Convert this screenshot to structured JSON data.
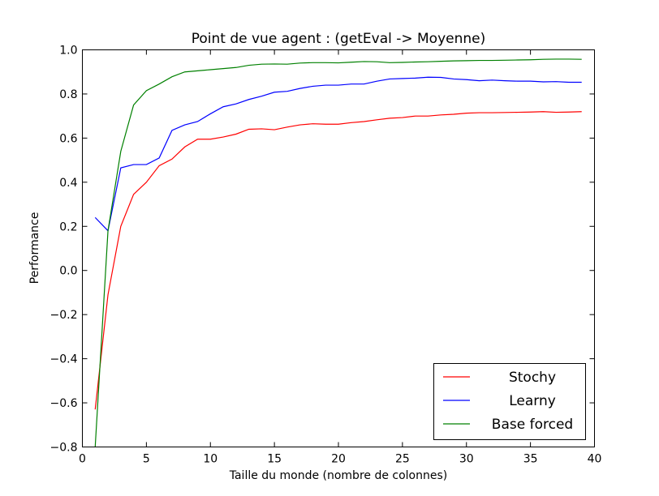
{
  "chart_data": {
    "type": "line",
    "title": "Point de vue agent : (getEval -> Moyenne)",
    "xlabel": "Taille du monde (nombre de colonnes)",
    "ylabel": "Performance",
    "xlim": [
      0,
      40
    ],
    "ylim": [
      -0.8,
      1.0
    ],
    "xticks": [
      "0",
      "5",
      "10",
      "15",
      "20",
      "25",
      "30",
      "35",
      "40"
    ],
    "yticks": [
      "−0.8",
      "−0.6",
      "−0.4",
      "−0.2",
      "0.0",
      "0.2",
      "0.4",
      "0.6",
      "0.8",
      "1.0"
    ],
    "grid": false,
    "legend_position": "lower-right",
    "x": [
      1,
      2,
      3,
      4,
      5,
      6,
      7,
      8,
      9,
      10,
      11,
      12,
      13,
      14,
      15,
      16,
      17,
      18,
      19,
      20,
      21,
      22,
      23,
      24,
      25,
      26,
      27,
      28,
      29,
      30,
      31,
      32,
      33,
      34,
      35,
      36,
      37,
      38,
      39
    ],
    "series": [
      {
        "name": "Stochy",
        "color": "#ff0000",
        "values": [
          -0.63,
          -0.11,
          0.2,
          0.345,
          0.4,
          0.475,
          0.505,
          0.56,
          0.595,
          0.595,
          0.605,
          0.618,
          0.64,
          0.642,
          0.638,
          0.65,
          0.66,
          0.665,
          0.663,
          0.663,
          0.67,
          0.675,
          0.683,
          0.69,
          0.693,
          0.7,
          0.7,
          0.705,
          0.708,
          0.713,
          0.715,
          0.715,
          0.716,
          0.717,
          0.718,
          0.72,
          0.717,
          0.718,
          0.72
        ]
      },
      {
        "name": "Learny",
        "color": "#0000ff",
        "values": [
          0.24,
          0.18,
          0.465,
          0.48,
          0.48,
          0.51,
          0.635,
          0.66,
          0.675,
          0.71,
          0.742,
          0.755,
          0.775,
          0.79,
          0.808,
          0.812,
          0.825,
          0.835,
          0.84,
          0.84,
          0.845,
          0.845,
          0.858,
          0.868,
          0.87,
          0.872,
          0.876,
          0.875,
          0.868,
          0.865,
          0.86,
          0.863,
          0.86,
          0.858,
          0.858,
          0.855,
          0.856,
          0.853,
          0.853
        ]
      },
      {
        "name": "Base forced",
        "color": "#008000",
        "values": [
          -0.8,
          0.18,
          0.54,
          0.75,
          0.815,
          0.845,
          0.878,
          0.9,
          0.905,
          0.91,
          0.915,
          0.92,
          0.93,
          0.935,
          0.936,
          0.935,
          0.94,
          0.942,
          0.942,
          0.941,
          0.944,
          0.947,
          0.946,
          0.942,
          0.943,
          0.945,
          0.946,
          0.948,
          0.95,
          0.951,
          0.952,
          0.952,
          0.953,
          0.954,
          0.955,
          0.957,
          0.958,
          0.958,
          0.957
        ]
      }
    ]
  }
}
